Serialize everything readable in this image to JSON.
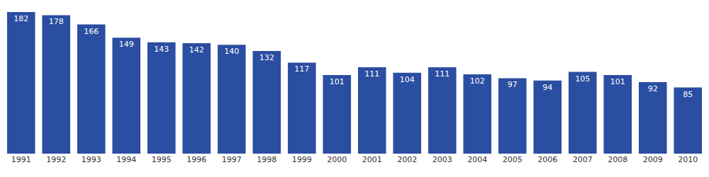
{
  "chart_data": {
    "type": "bar",
    "categories": [
      "1991",
      "1992",
      "1993",
      "1994",
      "1995",
      "1996",
      "1997",
      "1998",
      "1999",
      "2000",
      "2001",
      "2002",
      "2003",
      "2004",
      "2005",
      "2006",
      "2007",
      "2008",
      "2009",
      "2010"
    ],
    "values": [
      182,
      178,
      166,
      149,
      143,
      142,
      140,
      132,
      117,
      101,
      111,
      104,
      111,
      102,
      97,
      94,
      105,
      101,
      92,
      85
    ],
    "color": "#2a4ea1",
    "ylim": [
      0,
      182
    ],
    "grid": false,
    "data_labels": true,
    "tick_labels": "x"
  }
}
